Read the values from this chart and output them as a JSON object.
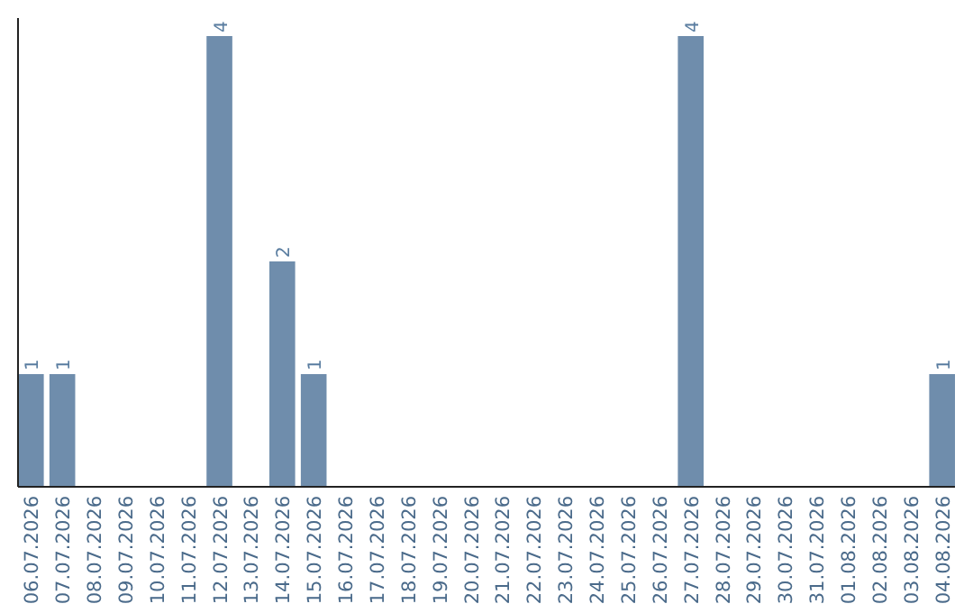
{
  "chart_data": {
    "type": "bar",
    "categories": [
      "06.07.2026",
      "07.07.2026",
      "08.07.2026",
      "09.07.2026",
      "10.07.2026",
      "11.07.2026",
      "12.07.2026",
      "13.07.2026",
      "14.07.2026",
      "15.07.2026",
      "16.07.2026",
      "17.07.2026",
      "18.07.2026",
      "19.07.2026",
      "20.07.2026",
      "21.07.2026",
      "22.07.2026",
      "23.07.2026",
      "24.07.2026",
      "25.07.2026",
      "26.07.2026",
      "27.07.2026",
      "28.07.2026",
      "29.07.2026",
      "30.07.2026",
      "31.07.2026",
      "01.08.2026",
      "02.08.2026",
      "03.08.2026",
      "04.08.2026"
    ],
    "values": [
      1,
      1,
      0,
      0,
      0,
      0,
      4,
      0,
      2,
      1,
      0,
      0,
      0,
      0,
      0,
      0,
      0,
      0,
      0,
      0,
      0,
      4,
      0,
      0,
      0,
      0,
      0,
      0,
      0,
      1
    ],
    "value_labels": [
      "1",
      "1",
      null,
      null,
      null,
      null,
      "4",
      null,
      "2",
      "1",
      null,
      null,
      null,
      null,
      null,
      null,
      null,
      null,
      null,
      null,
      null,
      "4",
      null,
      null,
      null,
      null,
      null,
      null,
      null,
      "1"
    ],
    "color": "#6f8dac"
  }
}
